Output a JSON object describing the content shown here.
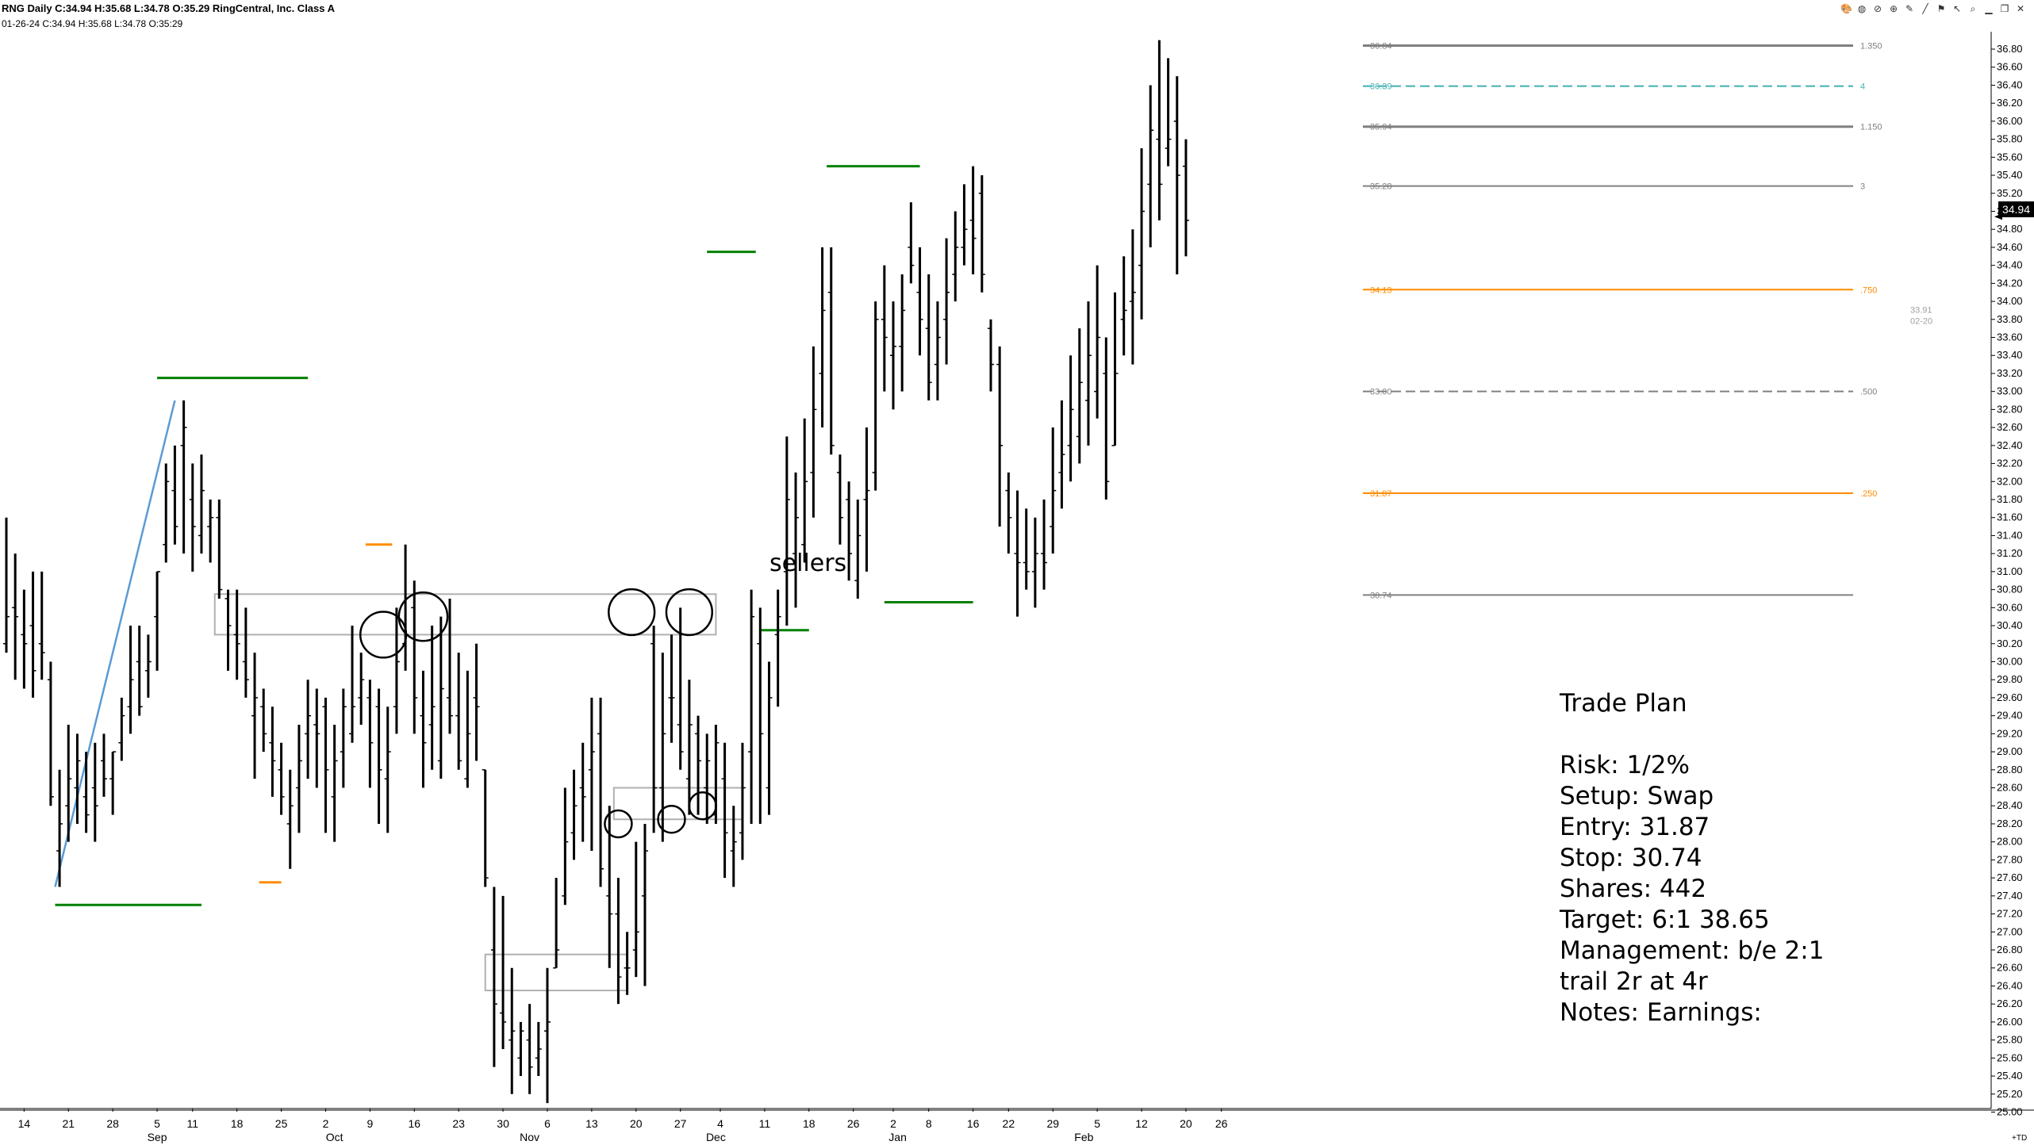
{
  "header": {
    "line1": "RNG Daily C:34.94 H:35.68 L:34.78 O:35.29 RingCentral, Inc. Class A",
    "line2": "01-26-24 C:34.94 H:35.68 L:34.78 O:35:29"
  },
  "toolbar": {
    "icons": [
      "palette-icon",
      "globe-icon",
      "no-icon",
      "crosshair-icon",
      "pencil-icon",
      "line-icon",
      "flag-icon",
      "pointer-icon",
      "zoom-icon",
      "minimize-icon",
      "restore-icon",
      "close-icon"
    ]
  },
  "annotations": {
    "sellers": "sellers",
    "last_price": "34.94",
    "td": "+TD"
  },
  "trade_plan": {
    "title": "Trade Plan",
    "risk": "Risk: 1/2%",
    "setup": "Setup: Swap",
    "entry": "Entry: 31.87",
    "stop": "Stop: 30.74",
    "shares": "Shares: 442",
    "target": "Target: 6:1  38.65",
    "management": "Management: b/e 2:1",
    "trail": "trail 2r at 4r",
    "notes": "Notes: Earnings:"
  },
  "colors": {
    "bars": "#000000",
    "support": "#008000",
    "orange": "#ff8c00",
    "fib_gray": "#808080",
    "teal": "#40b0b0",
    "trendline": "#5b9bd5",
    "box": "#b0b0b0"
  },
  "chart_data": {
    "type": "ohlc",
    "ylim": [
      25.0,
      36.8
    ],
    "y_ticks": [
      "25.00",
      "25.20",
      "25.40",
      "25.60",
      "25.80",
      "26.00",
      "26.20",
      "26.40",
      "26.60",
      "26.80",
      "27.00",
      "27.20",
      "27.40",
      "27.60",
      "27.80",
      "28.00",
      "28.20",
      "28.40",
      "28.60",
      "28.80",
      "29.00",
      "29.20",
      "29.40",
      "29.60",
      "29.80",
      "30.00",
      "30.20",
      "30.40",
      "30.60",
      "30.80",
      "31.00",
      "31.20",
      "31.40",
      "31.60",
      "31.80",
      "32.00",
      "32.20",
      "32.40",
      "32.60",
      "32.80",
      "33.00",
      "33.20",
      "33.40",
      "33.60",
      "33.80",
      "34.00",
      "34.20",
      "34.40",
      "34.60",
      "34.80",
      "35.00",
      "35.20",
      "35.40",
      "35.60",
      "35.80",
      "36.00",
      "36.20",
      "36.40",
      "36.60",
      "36.80"
    ],
    "x_ticks": [
      {
        "label": "14",
        "i": 2
      },
      {
        "label": "21",
        "i": 7
      },
      {
        "label": "28",
        "i": 12
      },
      {
        "label": "5",
        "i": 17
      },
      {
        "label": "11",
        "i": 21
      },
      {
        "label": "18",
        "i": 26
      },
      {
        "label": "25",
        "i": 31
      },
      {
        "label": "2",
        "i": 36
      },
      {
        "label": "9",
        "i": 41
      },
      {
        "label": "16",
        "i": 46
      },
      {
        "label": "23",
        "i": 51
      },
      {
        "label": "30",
        "i": 56
      },
      {
        "label": "6",
        "i": 61
      },
      {
        "label": "13",
        "i": 66
      },
      {
        "label": "20",
        "i": 71
      },
      {
        "label": "27",
        "i": 76
      },
      {
        "label": "4",
        "i": 80.5
      },
      {
        "label": "11",
        "i": 85.5
      },
      {
        "label": "18",
        "i": 90.5
      },
      {
        "label": "26",
        "i": 95.5
      },
      {
        "label": "2",
        "i": 100
      },
      {
        "label": "8",
        "i": 104
      },
      {
        "label": "16",
        "i": 109
      },
      {
        "label": "22",
        "i": 113
      },
      {
        "label": "29",
        "i": 118
      },
      {
        "label": "5",
        "i": 123
      },
      {
        "label": "12",
        "i": 128
      },
      {
        "label": "20",
        "i": 133
      },
      {
        "label": "26",
        "i": 137
      }
    ],
    "x_month_labels": [
      {
        "label": "Sep",
        "i": 17
      },
      {
        "label": "Oct",
        "i": 37
      },
      {
        "label": "Nov",
        "i": 59
      },
      {
        "label": "Dec",
        "i": 80
      },
      {
        "label": "Jan",
        "i": 100.5
      },
      {
        "label": "Feb",
        "i": 121.5
      }
    ],
    "ohlc": [
      [
        30.2,
        31.6,
        30.1,
        30.5
      ],
      [
        30.6,
        31.2,
        29.8,
        30.5
      ],
      [
        30.3,
        30.8,
        29.7,
        30.2
      ],
      [
        30.4,
        31.0,
        29.6,
        29.9
      ],
      [
        30.2,
        31.0,
        29.8,
        30.1
      ],
      [
        29.8,
        30.0,
        28.4,
        28.5
      ],
      [
        27.9,
        28.8,
        27.5,
        28.2
      ],
      [
        28.4,
        29.3,
        28.0,
        28.7
      ],
      [
        28.6,
        29.2,
        28.2,
        28.9
      ],
      [
        28.5,
        29.0,
        28.1,
        28.3
      ],
      [
        28.6,
        29.1,
        28.0,
        28.4
      ],
      [
        28.9,
        29.2,
        28.5,
        28.7
      ],
      [
        28.7,
        29.0,
        28.3,
        29.0
      ],
      [
        29.1,
        29.6,
        28.9,
        29.4
      ],
      [
        29.5,
        30.4,
        29.2,
        29.8
      ],
      [
        30.0,
        30.4,
        29.4,
        29.5
      ],
      [
        29.9,
        30.3,
        29.6,
        30.0
      ],
      [
        30.5,
        31.0,
        29.9,
        31.0
      ],
      [
        31.3,
        32.2,
        31.1,
        32.0
      ],
      [
        31.9,
        32.4,
        31.3,
        31.5
      ],
      [
        32.4,
        32.9,
        31.2,
        32.6
      ],
      [
        31.8,
        32.2,
        31.0,
        31.5
      ],
      [
        31.4,
        32.3,
        31.2,
        31.9
      ],
      [
        31.5,
        31.8,
        31.1,
        31.6
      ],
      [
        31.6,
        31.8,
        30.7,
        30.8
      ],
      [
        30.7,
        30.8,
        29.9,
        30.4
      ],
      [
        30.3,
        30.8,
        29.8,
        30.2
      ],
      [
        30.0,
        30.6,
        29.6,
        29.8
      ],
      [
        29.4,
        30.1,
        28.7,
        29.6
      ],
      [
        29.5,
        29.7,
        29.0,
        29.2
      ],
      [
        29.1,
        29.5,
        28.5,
        28.9
      ],
      [
        28.8,
        29.1,
        28.3,
        28.5
      ],
      [
        28.2,
        28.8,
        27.7,
        28.4
      ],
      [
        28.6,
        29.3,
        28.1,
        28.9
      ],
      [
        29.2,
        29.8,
        28.7,
        29.4
      ],
      [
        29.3,
        29.7,
        28.6,
        29.2
      ],
      [
        29.5,
        29.6,
        28.1,
        28.8
      ],
      [
        28.5,
        29.3,
        28.0,
        28.9
      ],
      [
        29.0,
        29.7,
        28.6,
        29.5
      ],
      [
        29.2,
        30.4,
        29.1,
        29.5
      ],
      [
        29.6,
        30.1,
        29.3,
        29.8
      ],
      [
        29.6,
        29.8,
        28.6,
        29.1
      ],
      [
        29.5,
        29.7,
        28.2,
        28.8
      ],
      [
        28.7,
        29.5,
        28.1,
        29.0
      ],
      [
        29.5,
        30.6,
        29.2,
        30.0
      ],
      [
        30.2,
        31.3,
        29.9,
        30.3
      ],
      [
        30.6,
        30.9,
        29.2,
        29.6
      ],
      [
        29.4,
        29.9,
        28.6,
        29.1
      ],
      [
        29.3,
        30.4,
        28.8,
        29.5
      ],
      [
        28.9,
        30.5,
        28.7,
        29.7
      ],
      [
        29.6,
        30.7,
        29.2,
        29.4
      ],
      [
        29.4,
        30.1,
        28.8,
        28.9
      ],
      [
        28.7,
        29.9,
        28.6,
        29.2
      ],
      [
        29.6,
        30.2,
        28.9,
        29.5
      ],
      [
        28.8,
        28.8,
        27.5,
        27.6
      ],
      [
        26.8,
        27.5,
        25.5,
        26.2
      ],
      [
        26.1,
        27.4,
        25.7,
        26.0
      ],
      [
        25.8,
        26.6,
        25.2,
        25.9
      ],
      [
        25.6,
        26.0,
        25.4,
        25.9
      ],
      [
        25.8,
        26.2,
        25.2,
        25.5
      ],
      [
        25.6,
        26.0,
        25.4,
        25.7
      ],
      [
        25.9,
        26.6,
        25.1,
        26.0
      ],
      [
        26.6,
        27.6,
        26.6,
        26.8
      ],
      [
        27.4,
        28.6,
        27.3,
        28.0
      ],
      [
        28.1,
        28.8,
        27.8,
        28.4
      ],
      [
        28.6,
        29.1,
        28.0,
        28.5
      ],
      [
        28.8,
        29.6,
        27.9,
        29.0
      ],
      [
        29.2,
        29.6,
        27.5,
        27.7
      ],
      [
        27.4,
        28.4,
        26.6,
        27.2
      ],
      [
        27.2,
        27.6,
        26.2,
        26.5
      ],
      [
        26.6,
        27.0,
        26.3,
        26.6
      ],
      [
        26.8,
        28.0,
        26.5,
        27.0
      ],
      [
        27.4,
        28.2,
        26.4,
        27.9
      ],
      [
        30.2,
        30.4,
        28.1,
        28.6
      ],
      [
        28.6,
        30.1,
        28.0,
        29.2
      ],
      [
        29.6,
        30.3,
        29.1,
        29.6
      ],
      [
        29.3,
        30.6,
        28.8,
        29.0
      ],
      [
        28.7,
        29.8,
        28.3,
        29.3
      ],
      [
        29.2,
        29.4,
        28.3,
        28.9
      ],
      [
        28.6,
        29.2,
        28.2,
        28.9
      ],
      [
        28.3,
        29.3,
        28.2,
        29.1
      ],
      [
        28.7,
        29.1,
        27.6,
        28.1
      ],
      [
        27.9,
        28.4,
        27.5,
        28.0
      ],
      [
        28.1,
        29.1,
        27.8,
        28.6
      ],
      [
        29.0,
        30.8,
        28.2,
        30.5
      ],
      [
        30.2,
        30.6,
        28.2,
        29.2
      ],
      [
        28.6,
        30.0,
        28.3,
        29.6
      ],
      [
        30.3,
        30.8,
        29.5,
        30.5
      ],
      [
        31.0,
        32.5,
        30.4,
        31.8
      ],
      [
        31.2,
        32.1,
        30.6,
        31.6
      ],
      [
        31.3,
        32.7,
        31.1,
        32.0
      ],
      [
        32.1,
        33.5,
        31.6,
        32.8
      ],
      [
        33.2,
        34.6,
        32.6,
        33.9
      ],
      [
        34.1,
        34.6,
        32.3,
        32.4
      ],
      [
        32.1,
        32.3,
        31.3,
        31.6
      ],
      [
        31.8,
        32.0,
        30.9,
        31.2
      ],
      [
        30.9,
        31.8,
        30.7,
        31.4
      ],
      [
        31.8,
        32.6,
        31.0,
        31.9
      ],
      [
        32.1,
        34.0,
        31.9,
        33.8
      ],
      [
        33.8,
        34.4,
        33.0,
        33.6
      ],
      [
        33.4,
        34.0,
        32.8,
        33.5
      ],
      [
        33.5,
        34.3,
        33.0,
        33.9
      ],
      [
        34.6,
        35.1,
        34.2,
        34.4
      ],
      [
        34.1,
        34.6,
        33.4,
        33.8
      ],
      [
        33.7,
        34.3,
        32.9,
        33.1
      ],
      [
        33.3,
        34.0,
        32.9,
        33.6
      ],
      [
        33.8,
        34.7,
        33.3,
        34.1
      ],
      [
        34.3,
        35.0,
        34.0,
        34.6
      ],
      [
        34.6,
        35.3,
        34.4,
        34.8
      ],
      [
        34.9,
        35.5,
        34.3,
        34.7
      ],
      [
        35.2,
        35.4,
        34.1,
        34.3
      ],
      [
        33.7,
        33.8,
        33.0,
        33.3
      ],
      [
        33.3,
        33.5,
        31.5,
        32.4
      ],
      [
        31.9,
        32.1,
        31.2,
        31.6
      ],
      [
        31.2,
        31.9,
        30.5,
        31.1
      ],
      [
        31.1,
        31.7,
        30.8,
        31.0
      ],
      [
        31.0,
        31.6,
        30.6,
        31.2
      ],
      [
        31.2,
        31.8,
        30.8,
        31.1
      ],
      [
        31.5,
        32.6,
        31.2,
        31.9
      ],
      [
        32.1,
        32.9,
        31.7,
        32.3
      ],
      [
        32.4,
        33.4,
        32.0,
        32.8
      ],
      [
        32.5,
        33.7,
        32.2,
        33.1
      ],
      [
        32.9,
        34.0,
        32.4,
        33.4
      ],
      [
        33.0,
        34.4,
        32.7,
        33.6
      ],
      [
        33.2,
        33.6,
        31.8,
        32.0
      ],
      [
        32.4,
        34.1,
        32.4,
        33.2
      ],
      [
        33.8,
        34.5,
        33.4,
        33.9
      ],
      [
        34.0,
        34.8,
        33.3,
        34.1
      ],
      [
        34.4,
        35.7,
        33.8,
        35.0
      ],
      [
        35.3,
        36.4,
        34.6,
        35.9
      ],
      [
        35.8,
        36.9,
        34.9,
        35.3
      ],
      [
        35.7,
        36.7,
        35.5,
        35.8
      ],
      [
        36.0,
        36.5,
        34.3,
        35.4
      ],
      [
        35.5,
        35.8,
        34.5,
        34.9
      ]
    ],
    "fib_levels": [
      {
        "price": 36.84,
        "label_left": "36.84",
        "label_right": "1.350",
        "color": "#808080",
        "dash": false,
        "width": 3
      },
      {
        "price": 36.39,
        "label_left": "36.39",
        "label_right": "4",
        "color": "#40b0b0",
        "dash": true,
        "width": 2
      },
      {
        "price": 35.94,
        "label_left": "35.94",
        "label_right": "1.150",
        "color": "#808080",
        "dash": false,
        "width": 3
      },
      {
        "price": 35.28,
        "label_left": "35.28",
        "label_right": "3",
        "color": "#808080",
        "dash": false,
        "width": 2
      },
      {
        "price": 34.13,
        "label_left": "34.13",
        "label_right": ".750",
        "color": "#ff8c00",
        "dash": false,
        "width": 2
      },
      {
        "price": 33.0,
        "label_left": "33.00",
        "label_right": ".500",
        "color": "#808080",
        "dash": true,
        "width": 2
      },
      {
        "price": 31.87,
        "label_left": "31.87",
        "label_right": ".250",
        "color": "#ff8c00",
        "dash": false,
        "width": 2
      },
      {
        "price": 30.74,
        "label_left": "30.74",
        "label_right": "",
        "color": "#808080",
        "dash": false,
        "width": 2
      }
    ],
    "side_labels": [
      "33.91",
      "02-20"
    ],
    "support_lines": [
      {
        "i0": 5.5,
        "i1": 22,
        "price": 27.3,
        "color": "#008000"
      },
      {
        "i0": 17,
        "i1": 34,
        "price": 33.15,
        "color": "#008000"
      },
      {
        "i0": 28.5,
        "i1": 31,
        "price": 27.55,
        "color": "#ff8c00"
      },
      {
        "i0": 40.5,
        "i1": 43.5,
        "price": 31.3,
        "color": "#ff8c00"
      },
      {
        "i0": 79,
        "i1": 84.5,
        "price": 34.55,
        "color": "#008000"
      },
      {
        "i0": 85,
        "i1": 90.5,
        "price": 30.35,
        "color": "#008000"
      },
      {
        "i0": 92.5,
        "i1": 103,
        "price": 35.5,
        "color": "#008000"
      },
      {
        "i0": 99,
        "i1": 109,
        "price": 30.66,
        "color": "#008000"
      }
    ],
    "trendline": {
      "i0": 5.5,
      "p0": 27.5,
      "i1": 19,
      "p1": 32.9
    },
    "boxes": [
      {
        "i0": 23.5,
        "i1": 80,
        "p0": 30.3,
        "p1": 30.75
      },
      {
        "i0": 54,
        "i1": 70,
        "p0": 26.35,
        "p1": 26.75
      },
      {
        "i0": 68.5,
        "i1": 83,
        "p0": 28.25,
        "p1": 28.6
      }
    ],
    "circles": [
      {
        "i": 42.5,
        "p": 30.3,
        "r": 17
      },
      {
        "i": 47,
        "p": 30.5,
        "r": 18
      },
      {
        "i": 70.5,
        "p": 30.55,
        "r": 17
      },
      {
        "i": 77,
        "p": 30.55,
        "r": 17
      },
      {
        "i": 69,
        "p": 28.2,
        "r": 10
      },
      {
        "i": 75,
        "p": 28.25,
        "r": 10
      },
      {
        "i": 78.5,
        "p": 28.4,
        "r": 10
      }
    ]
  }
}
